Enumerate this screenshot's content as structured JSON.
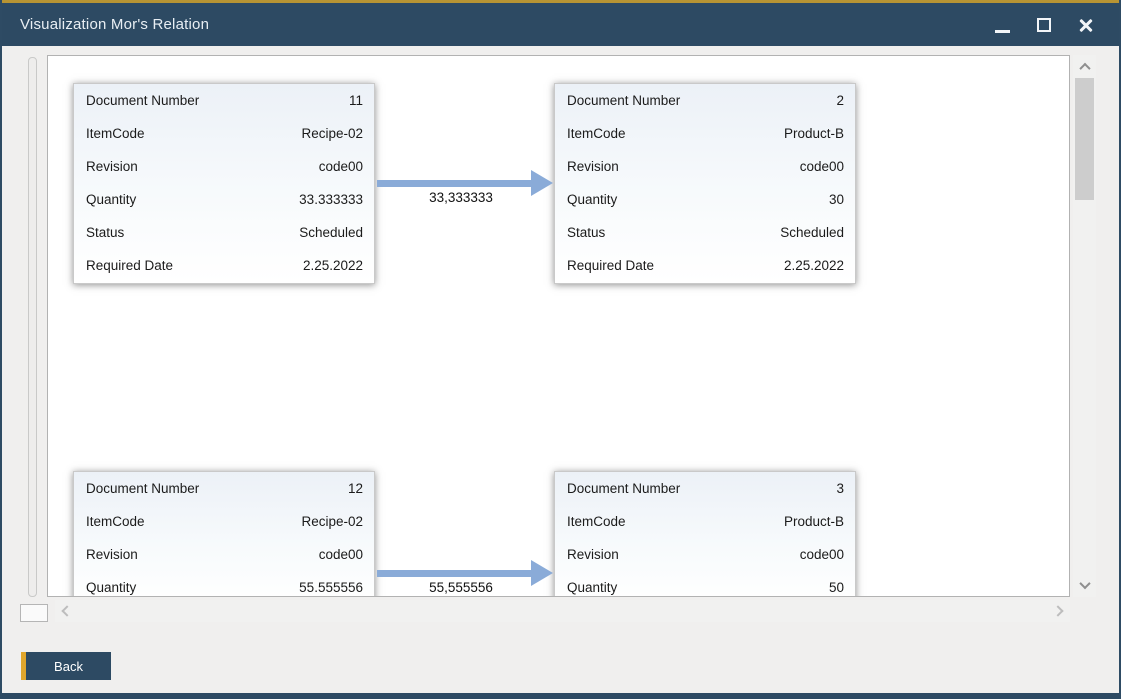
{
  "window": {
    "title": "Visualization Mor's Relation",
    "controls": {
      "minimize": "minimize",
      "maximize": "maximize",
      "close": "close"
    }
  },
  "colors": {
    "titlebar_bg": "#2d4a63",
    "accent_gold": "#e0a62c",
    "top_gold_line": "#b79433",
    "arrow_blue": "#8aabd8",
    "canvas_bg": "#ffffff",
    "window_bg": "#f0efee"
  },
  "canvas": {
    "cards": [
      {
        "position": "top-left",
        "fields": [
          {
            "label": "Document Number",
            "value": "11"
          },
          {
            "label": "ItemCode",
            "value": "Recipe-02"
          },
          {
            "label": "Revision",
            "value": "code00"
          },
          {
            "label": "Quantity",
            "value": "33.333333"
          },
          {
            "label": "Status",
            "value": "Scheduled"
          },
          {
            "label": "Required Date",
            "value": "2.25.2022"
          }
        ]
      },
      {
        "position": "top-right",
        "fields": [
          {
            "label": "Document Number",
            "value": "2"
          },
          {
            "label": "ItemCode",
            "value": "Product-B"
          },
          {
            "label": "Revision",
            "value": "code00"
          },
          {
            "label": "Quantity",
            "value": "30"
          },
          {
            "label": "Status",
            "value": "Scheduled"
          },
          {
            "label": "Required Date",
            "value": "2.25.2022"
          }
        ]
      },
      {
        "position": "bottom-left",
        "fields": [
          {
            "label": "Document Number",
            "value": "12"
          },
          {
            "label": "ItemCode",
            "value": "Recipe-02"
          },
          {
            "label": "Revision",
            "value": "code00"
          },
          {
            "label": "Quantity",
            "value": "55.555556"
          }
        ]
      },
      {
        "position": "bottom-right",
        "fields": [
          {
            "label": "Document Number",
            "value": "3"
          },
          {
            "label": "ItemCode",
            "value": "Product-B"
          },
          {
            "label": "Revision",
            "value": "code00"
          },
          {
            "label": "Quantity",
            "value": "50"
          }
        ]
      }
    ],
    "connections": [
      {
        "from": "top-left",
        "to": "top-right",
        "label": "33,333333"
      },
      {
        "from": "bottom-left",
        "to": "bottom-right",
        "label": "55,555556"
      }
    ]
  },
  "footer": {
    "back_label": "Back"
  }
}
